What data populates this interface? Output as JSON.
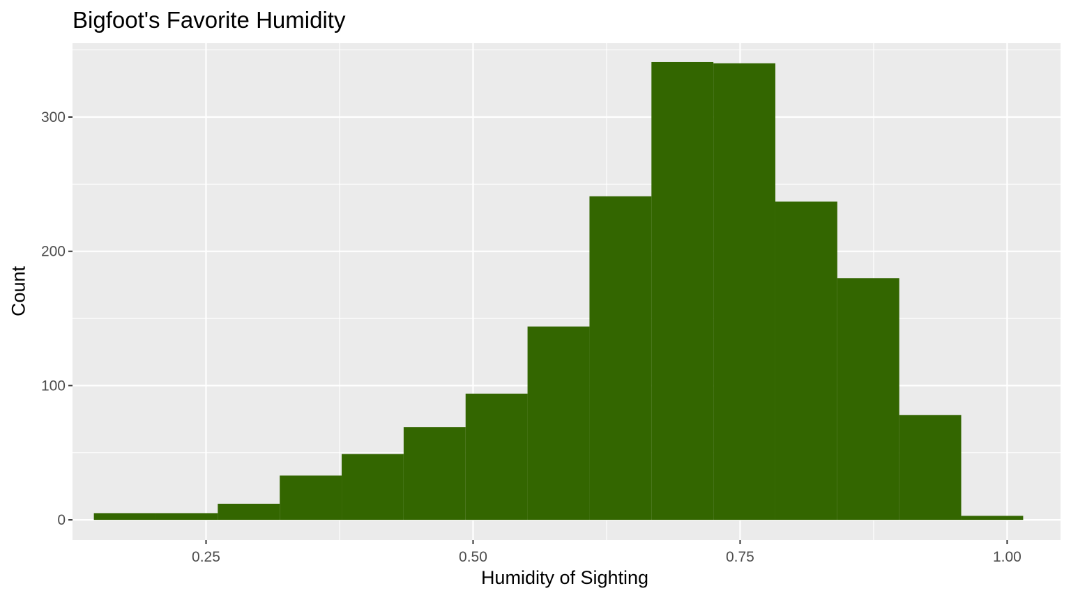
{
  "chart_data": {
    "type": "histogram",
    "title": "Bigfoot's Favorite Humidity",
    "xlabel": "Humidity of Sighting",
    "ylabel": "Count",
    "xlim": [
      0.125,
      1.05
    ],
    "ylim": [
      -15,
      355
    ],
    "x_ticks": [
      0.25,
      0.5,
      0.75,
      1.0
    ],
    "x_tick_labels": [
      "0.25",
      "0.50",
      "0.75",
      "1.00"
    ],
    "y_ticks": [
      0,
      100,
      200,
      300
    ],
    "y_tick_labels": [
      "0",
      "100",
      "200",
      "300"
    ],
    "grid": true,
    "bar_color": "#336600",
    "panel_background": "#EBEBEB",
    "bins": [
      {
        "x0": 0.145,
        "x1": 0.203,
        "count": 5
      },
      {
        "x0": 0.203,
        "x1": 0.261,
        "count": 5
      },
      {
        "x0": 0.261,
        "x1": 0.319,
        "count": 12
      },
      {
        "x0": 0.319,
        "x1": 0.377,
        "count": 33
      },
      {
        "x0": 0.377,
        "x1": 0.435,
        "count": 49
      },
      {
        "x0": 0.435,
        "x1": 0.493,
        "count": 69
      },
      {
        "x0": 0.493,
        "x1": 0.551,
        "count": 94
      },
      {
        "x0": 0.551,
        "x1": 0.609,
        "count": 144
      },
      {
        "x0": 0.609,
        "x1": 0.667,
        "count": 241
      },
      {
        "x0": 0.667,
        "x1": 0.725,
        "count": 341
      },
      {
        "x0": 0.725,
        "x1": 0.783,
        "count": 340
      },
      {
        "x0": 0.783,
        "x1": 0.841,
        "count": 237
      },
      {
        "x0": 0.841,
        "x1": 0.899,
        "count": 180
      },
      {
        "x0": 0.899,
        "x1": 0.957,
        "count": 78
      },
      {
        "x0": 0.957,
        "x1": 1.015,
        "count": 3
      }
    ]
  }
}
